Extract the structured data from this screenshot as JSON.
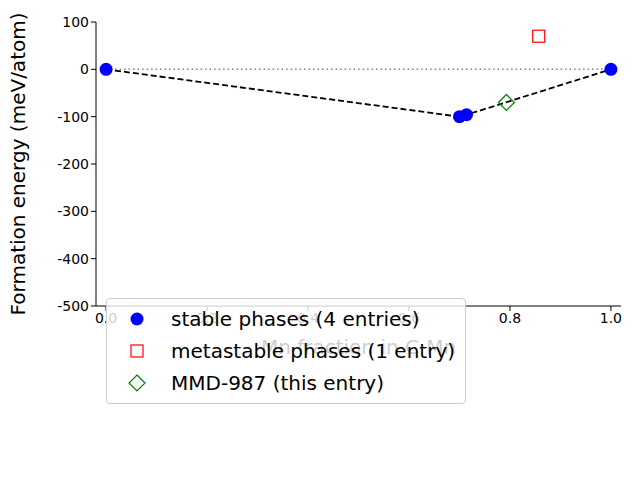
{
  "chart_data": {
    "type": "scatter",
    "x_label": "Mn fraction in C-Mn",
    "y_label": "Formation energy (meV/atom)",
    "xlim": [
      -0.02,
      1.02
    ],
    "ylim": [
      -500,
      100
    ],
    "xticks": [
      {
        "value": 0,
        "label": "0.0"
      },
      0.2,
      0.4,
      0.6,
      0.8,
      {
        "value": 1,
        "label": "1.0"
      }
    ],
    "yticks": [
      -500,
      -400,
      -300,
      -200,
      -100,
      0,
      100
    ],
    "legend": "lower left",
    "hull": {
      "color": "black",
      "line_style": "dashed"
    },
    "hline": {
      "y": 0,
      "x": [
        0,
        1
      ],
      "color": "gray",
      "line_style": "dotted"
    },
    "series": [
      {
        "name": "stable phases (4 entries)",
        "color": "blue",
        "marker": "circle",
        "x": [
          0,
          0.7,
          0.714,
          1.0
        ],
        "values": [
          0,
          -100,
          -96,
          0
        ]
      },
      {
        "name": "metastable phases (1 entry)",
        "color": "red",
        "marker": "square",
        "x": [
          0.857
        ],
        "values": [
          70
        ]
      },
      {
        "name": "MMD-987 (this entry)",
        "color": "green",
        "marker": "diamond",
        "x": [
          0.793
        ],
        "values": [
          -70
        ]
      }
    ]
  }
}
